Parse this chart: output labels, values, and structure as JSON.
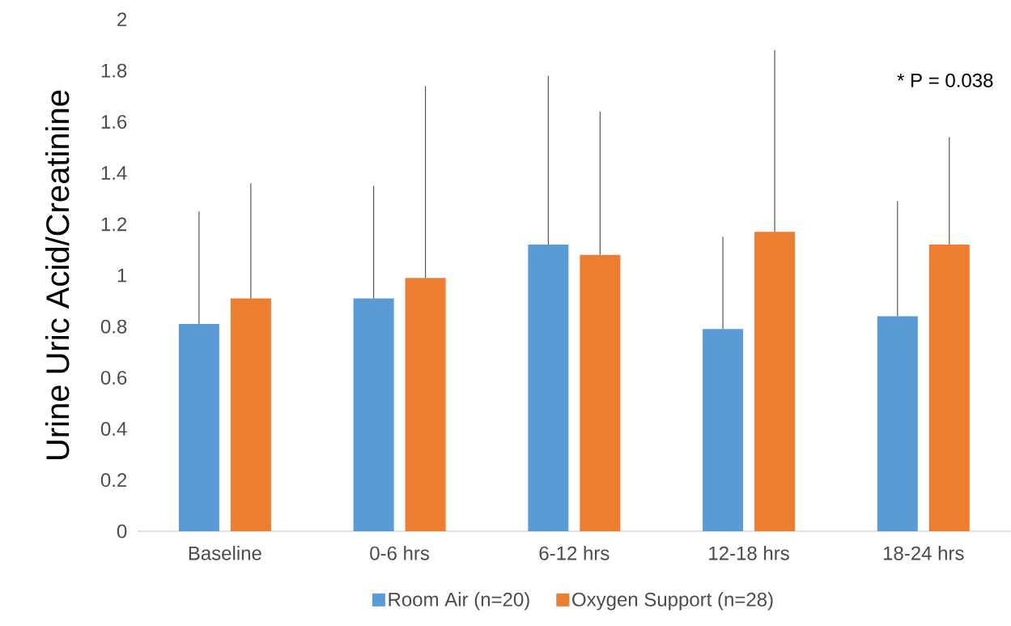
{
  "chart_data": {
    "type": "bar",
    "ylabel": "Urine Uric Acid/Creatinine",
    "categories": [
      "Baseline",
      "0-6 hrs",
      "6-12 hrs",
      "12-18 hrs",
      "18-24 hrs"
    ],
    "series": [
      {
        "name": "Room Air (n=20)",
        "color": "#5b9bd5",
        "values": [
          0.81,
          0.91,
          1.12,
          0.79,
          0.84
        ],
        "errors": [
          [
            0.81,
            1.25
          ],
          [
            0.91,
            1.35
          ],
          [
            1.12,
            1.78
          ],
          [
            0.79,
            1.15
          ],
          [
            0.84,
            1.29
          ]
        ]
      },
      {
        "name": "Oxygen Support (n=28)",
        "color": "#ed7d31",
        "values": [
          0.91,
          0.99,
          1.08,
          1.17,
          1.12
        ],
        "errors": [
          [
            0.91,
            1.36
          ],
          [
            0.99,
            1.74
          ],
          [
            1.08,
            1.64
          ],
          [
            1.17,
            1.88
          ],
          [
            1.12,
            1.54
          ]
        ]
      }
    ],
    "ylim": [
      0,
      2
    ],
    "yticks": [
      0,
      0.2,
      0.4,
      0.6,
      0.8,
      1,
      1.2,
      1.4,
      1.6,
      1.8,
      2
    ],
    "grid": false,
    "legend": "bottom",
    "annotations": [
      "* P = 0.038"
    ]
  }
}
